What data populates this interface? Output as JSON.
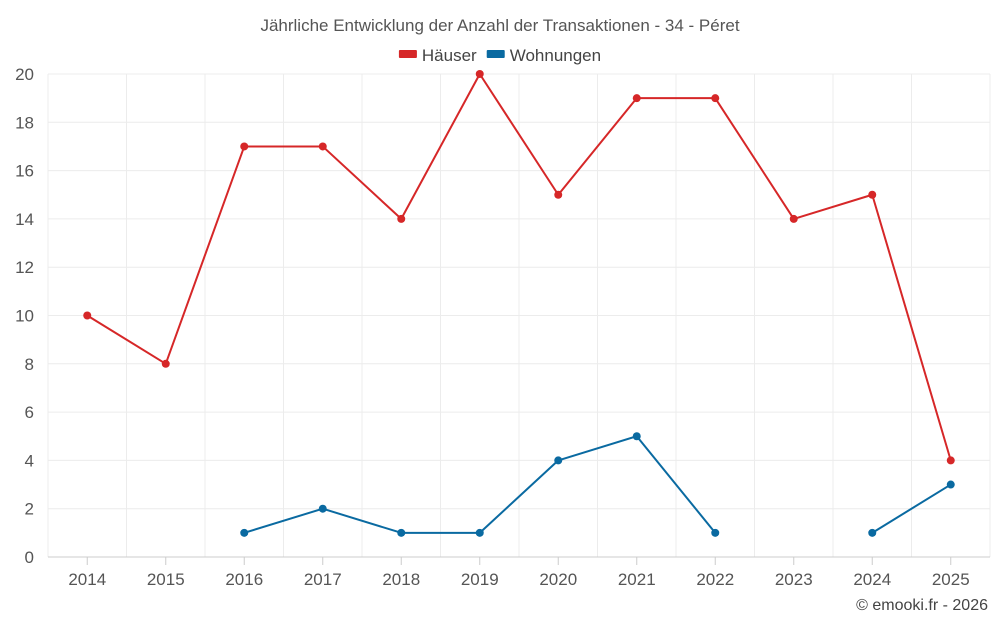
{
  "chart_data": {
    "type": "line",
    "title": "Jährliche Entwicklung der Anzahl der Transaktionen - 34 - Péret",
    "xlabel": "",
    "ylabel": "",
    "categories": [
      "2014",
      "2015",
      "2016",
      "2017",
      "2018",
      "2019",
      "2020",
      "2021",
      "2022",
      "2023",
      "2024",
      "2025"
    ],
    "ylim": [
      0,
      20
    ],
    "yticks": [
      0,
      2,
      4,
      6,
      8,
      10,
      12,
      14,
      16,
      18,
      20
    ],
    "grid": true,
    "legend_position": "top-center",
    "series": [
      {
        "name": "Häuser",
        "color": "#d62728",
        "values": [
          10,
          8,
          17,
          17,
          14,
          20,
          15,
          19,
          19,
          14,
          15,
          4
        ]
      },
      {
        "name": "Wohnungen",
        "color": "#0a6aa1",
        "values": [
          null,
          null,
          1,
          2,
          1,
          1,
          4,
          5,
          1,
          null,
          1,
          3
        ]
      }
    ]
  },
  "credit": "© emooki.fr - 2026"
}
